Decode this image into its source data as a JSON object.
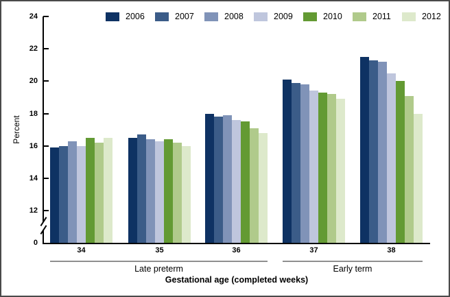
{
  "chart_data": {
    "type": "bar",
    "title": "",
    "xlabel": "Gestational age (completed weeks)",
    "ylabel": "Percent",
    "categories": [
      "34",
      "35",
      "36",
      "37",
      "38"
    ],
    "category_groups": [
      {
        "label": "Late preterm",
        "span": [
          0,
          2
        ]
      },
      {
        "label": "Early term",
        "span": [
          3,
          4
        ]
      }
    ],
    "series": [
      {
        "name": "2006",
        "color": "#0e3263",
        "values": [
          15.9,
          16.5,
          18.0,
          20.1,
          21.5
        ]
      },
      {
        "name": "2007",
        "color": "#3b5c88",
        "values": [
          16.0,
          16.7,
          17.8,
          19.9,
          21.3
        ]
      },
      {
        "name": "2008",
        "color": "#8093b8",
        "values": [
          16.3,
          16.4,
          17.9,
          19.8,
          21.2
        ]
      },
      {
        "name": "2009",
        "color": "#bfc6dd",
        "values": [
          16.0,
          16.3,
          17.6,
          19.4,
          20.5
        ]
      },
      {
        "name": "2010",
        "color": "#639a33",
        "values": [
          16.5,
          16.4,
          17.5,
          19.3,
          20.0
        ]
      },
      {
        "name": "2011",
        "color": "#b0ca8b",
        "values": [
          16.2,
          16.2,
          17.1,
          19.2,
          19.1
        ]
      },
      {
        "name": "2012",
        "color": "#dde9cb",
        "values": [
          16.5,
          16.0,
          16.8,
          18.9,
          18.0
        ]
      }
    ],
    "yticks": [
      24,
      22,
      20,
      18,
      16,
      14,
      12,
      0
    ],
    "ylim_display": [
      12,
      24
    ],
    "axis_break": true,
    "grid": false,
    "legend_position": "top",
    "axis_color": "#000000",
    "group_line_color": "#8f8f8f"
  }
}
